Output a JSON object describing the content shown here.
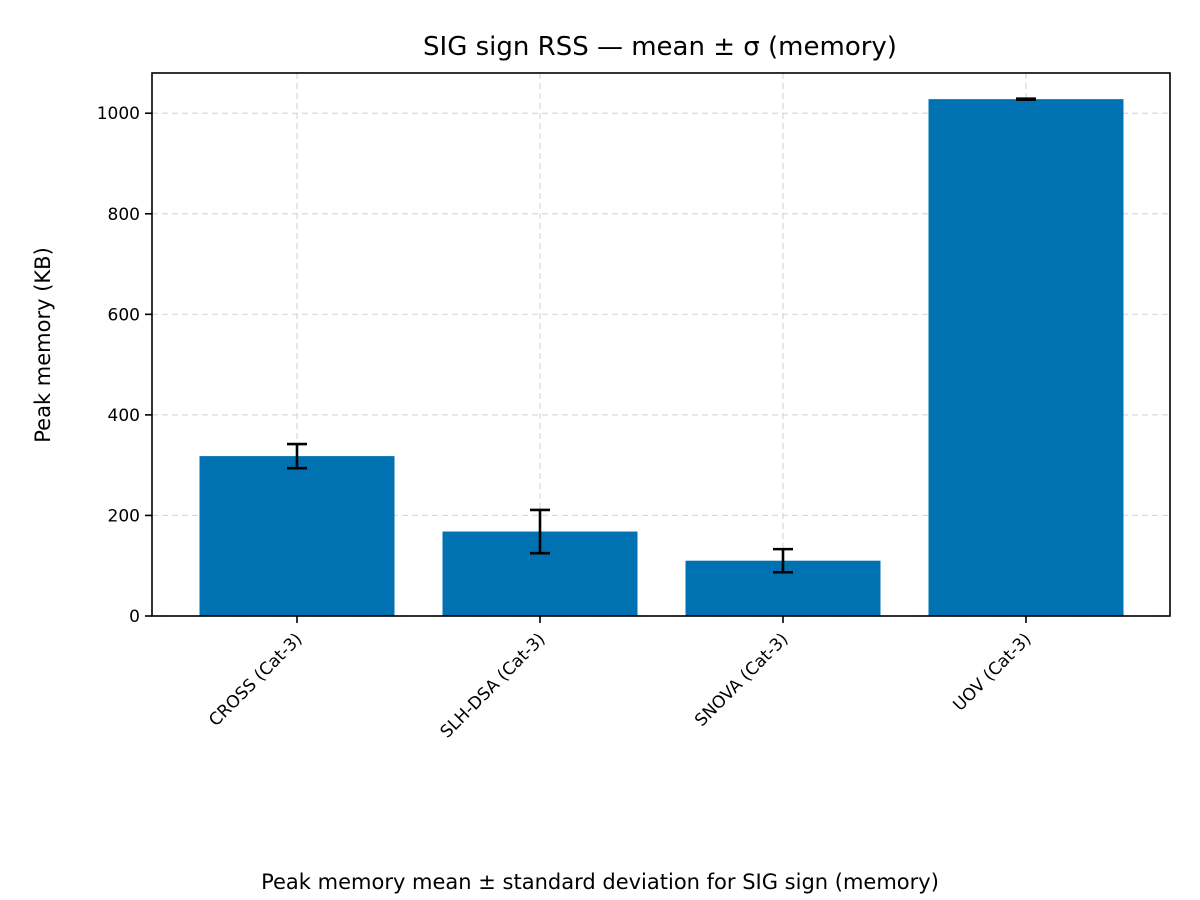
{
  "chart_data": {
    "type": "bar",
    "title": "SIG sign RSS — mean ± σ (memory)",
    "xlabel": "",
    "ylabel": "Peak memory (KB)",
    "caption": "Peak memory mean ± standard deviation for SIG sign (memory)",
    "categories": [
      "CROSS (Cat-3)",
      "SLH-DSA (Cat-3)",
      "SNOVA (Cat-3)",
      "UOV (Cat-3)"
    ],
    "values": [
      318,
      168,
      110,
      1028
    ],
    "errors": [
      24,
      43,
      23,
      1
    ],
    "ylim": [
      0,
      1080
    ],
    "yticks": [
      0,
      200,
      400,
      600,
      800,
      1000
    ],
    "grid": true,
    "bar_color": "#0072B2"
  }
}
